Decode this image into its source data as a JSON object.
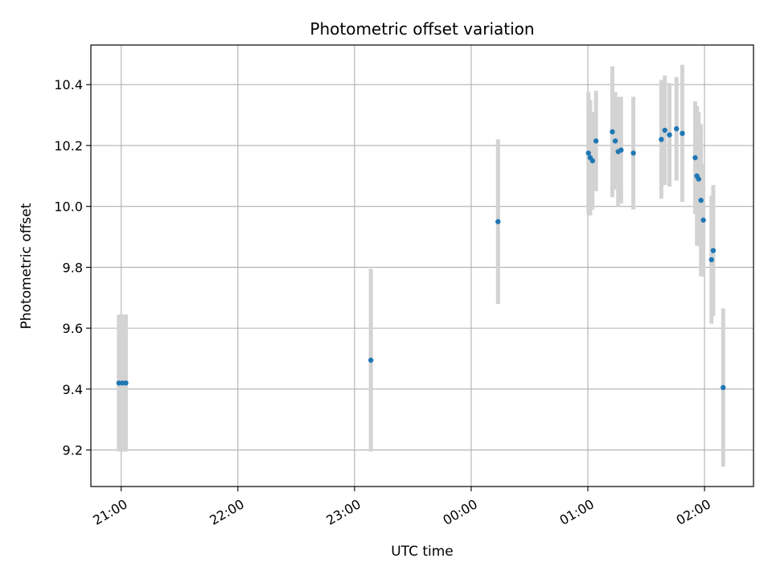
{
  "chart_data": {
    "type": "scatter",
    "title": "Photometric offset variation",
    "xlabel": "UTC time",
    "ylabel": "Photometric offset",
    "x_unit": "hours",
    "xlim": [
      -0.26,
      5.42
    ],
    "ylim": [
      9.08,
      10.53
    ],
    "x_ticks": [
      {
        "value": 0,
        "label": "21:00"
      },
      {
        "value": 1,
        "label": "22:00"
      },
      {
        "value": 2,
        "label": "23:00"
      },
      {
        "value": 3,
        "label": "00:00"
      },
      {
        "value": 4,
        "label": "01:00"
      },
      {
        "value": 5,
        "label": "02:00"
      }
    ],
    "y_ticks": [
      {
        "value": 9.2,
        "label": "9.2"
      },
      {
        "value": 9.4,
        "label": "9.4"
      },
      {
        "value": 9.6,
        "label": "9.6"
      },
      {
        "value": 9.8,
        "label": "9.8"
      },
      {
        "value": 10.0,
        "label": "10.0"
      },
      {
        "value": 10.2,
        "label": "10.2"
      },
      {
        "value": 10.4,
        "label": "10.4"
      }
    ],
    "grid": true,
    "colors": {
      "points": "#1f77b4",
      "errorbars": "#d3d3d3",
      "grid": "#b0b0b0"
    },
    "points": [
      {
        "x": -0.02,
        "y": 9.42,
        "yerr": 0.225
      },
      {
        "x": 0.01,
        "y": 9.42,
        "yerr": 0.225
      },
      {
        "x": 0.04,
        "y": 9.42,
        "yerr": 0.225
      },
      {
        "x": 2.14,
        "y": 9.495,
        "yerr": 0.3
      },
      {
        "x": 3.23,
        "y": 9.95,
        "yerr": 0.27
      },
      {
        "x": 4.005,
        "y": 10.175,
        "yerr": 0.2
      },
      {
        "x": 4.02,
        "y": 10.16,
        "yerr": 0.19
      },
      {
        "x": 4.04,
        "y": 10.15,
        "yerr": 0.16
      },
      {
        "x": 4.07,
        "y": 10.215,
        "yerr": 0.165
      },
      {
        "x": 4.21,
        "y": 10.245,
        "yerr": 0.215
      },
      {
        "x": 4.235,
        "y": 10.215,
        "yerr": 0.16
      },
      {
        "x": 4.26,
        "y": 10.18,
        "yerr": 0.18
      },
      {
        "x": 4.285,
        "y": 10.185,
        "yerr": 0.175
      },
      {
        "x": 4.39,
        "y": 10.175,
        "yerr": 0.185
      },
      {
        "x": 4.63,
        "y": 10.22,
        "yerr": 0.195
      },
      {
        "x": 4.66,
        "y": 10.25,
        "yerr": 0.18
      },
      {
        "x": 4.7,
        "y": 10.235,
        "yerr": 0.17
      },
      {
        "x": 4.76,
        "y": 10.255,
        "yerr": 0.17
      },
      {
        "x": 4.81,
        "y": 10.24,
        "yerr": 0.225
      },
      {
        "x": 4.92,
        "y": 10.16,
        "yerr": 0.185
      },
      {
        "x": 4.935,
        "y": 10.1,
        "yerr": 0.23
      },
      {
        "x": 4.95,
        "y": 10.09,
        "yerr": 0.22
      },
      {
        "x": 4.97,
        "y": 10.02,
        "yerr": 0.25
      },
      {
        "x": 4.99,
        "y": 9.955,
        "yerr": 0.185
      },
      {
        "x": 5.06,
        "y": 9.825,
        "yerr": 0.21
      },
      {
        "x": 5.075,
        "y": 9.855,
        "yerr": 0.215
      },
      {
        "x": 5.16,
        "y": 9.405,
        "yerr": 0.26
      }
    ]
  }
}
